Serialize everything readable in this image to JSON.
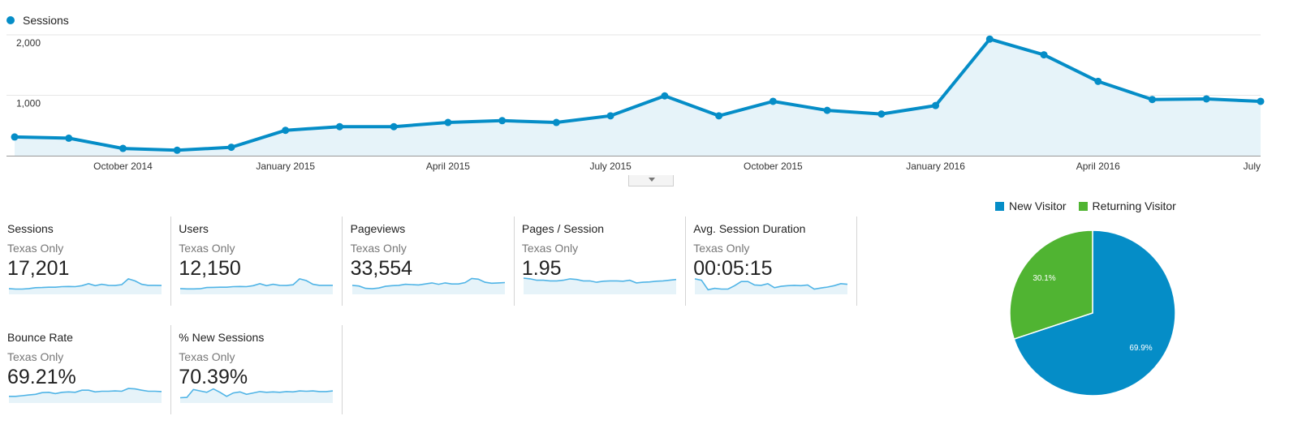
{
  "colors": {
    "sessions_line": "#058dc7",
    "sessions_fill": "#e6f3f9",
    "sparkline": "#50b4e6",
    "sparkline_fill": "#e6f3f9",
    "new_visitor": "#058dc7",
    "returning_visitor": "#50b432",
    "gridline": "#e6e6e6",
    "axis": "#999999"
  },
  "chart_data": [
    {
      "type": "area",
      "series": [
        {
          "name": "Sessions",
          "values": [
            310,
            290,
            120,
            90,
            140,
            420,
            480,
            480,
            550,
            580,
            550,
            660,
            990,
            660,
            900,
            750,
            690,
            830,
            1930,
            1670,
            1230,
            930,
            940,
            900
          ]
        }
      ],
      "yticks": [
        "2,000",
        "1,000"
      ],
      "ylim": [
        0,
        2000
      ],
      "xticks": [
        "October 2014",
        "January 2015",
        "April 2015",
        "July 2015",
        "October 2015",
        "January 2016",
        "April 2016",
        "July"
      ],
      "grid": true,
      "legend": "top-left"
    },
    {
      "type": "pie",
      "labels": [
        "New Visitor",
        "Returning Visitor"
      ],
      "values": [
        69.9,
        30.1
      ],
      "value_labels": [
        "69.9%",
        "30.1%"
      ],
      "legend": "top"
    }
  ],
  "scorecards": [
    {
      "label": "Sessions",
      "segment": "Texas Only",
      "value": "17,201",
      "spark": [
        0.75,
        0.6,
        0.6,
        0.75,
        1.0,
        1.05,
        1.15,
        1.15,
        1.3,
        1.35,
        1.3,
        1.6,
        2.2,
        1.6,
        2.0,
        1.7,
        1.65,
        1.9,
        3.6,
        3.0,
        2.0,
        1.7,
        1.7,
        1.65
      ]
    },
    {
      "label": "Users",
      "segment": "Texas Only",
      "value": "12,150",
      "spark": [
        0.75,
        0.65,
        0.65,
        0.7,
        1.05,
        1.1,
        1.15,
        1.15,
        1.3,
        1.35,
        1.3,
        1.6,
        2.2,
        1.6,
        2.0,
        1.7,
        1.65,
        1.85,
        3.6,
        3.1,
        2.0,
        1.7,
        1.7,
        1.7
      ]
    },
    {
      "label": "Pageviews",
      "segment": "Texas Only",
      "value": "33,554",
      "spark": [
        1.7,
        1.5,
        0.8,
        0.7,
        0.9,
        1.4,
        1.6,
        1.7,
        2.0,
        1.9,
        1.8,
        2.1,
        2.4,
        2.0,
        2.4,
        2.1,
        2.1,
        2.5,
        3.7,
        3.5,
        2.6,
        2.3,
        2.4,
        2.5
      ]
    },
    {
      "label": "Pages / Session",
      "segment": "Texas Only",
      "value": "1.95",
      "spark": [
        3.8,
        3.6,
        3.2,
        3.2,
        3.0,
        3.0,
        3.2,
        3.6,
        3.4,
        3.0,
        3.0,
        2.6,
        2.9,
        3.0,
        3.0,
        2.9,
        3.2,
        2.4,
        2.6,
        2.7,
        2.9,
        3.0,
        3.2,
        3.4
      ]
    },
    {
      "label": "Avg. Session Duration",
      "segment": "Texas Only",
      "value": "00:05:15",
      "spark": [
        3.6,
        3.2,
        0.4,
        0.8,
        0.6,
        0.6,
        1.6,
        2.8,
        2.8,
        1.8,
        1.7,
        2.2,
        1.0,
        1.4,
        1.6,
        1.7,
        1.6,
        1.8,
        0.6,
        0.9,
        1.2,
        1.6,
        2.2,
        2.0
      ]
    },
    {
      "label": "Bounce Rate",
      "segment": "Texas Only",
      "value": "69.21%",
      "spark": [
        1.0,
        1.0,
        1.2,
        1.4,
        1.6,
        2.1,
        2.2,
        1.8,
        2.2,
        2.3,
        2.2,
        2.8,
        2.8,
        2.3,
        2.5,
        2.5,
        2.6,
        2.5,
        3.3,
        3.2,
        2.8,
        2.5,
        2.5,
        2.4
      ]
    },
    {
      "label": "% New Sessions",
      "segment": "Texas Only",
      "value": "70.39%",
      "spark": [
        0.6,
        0.7,
        3.0,
        2.6,
        2.2,
        3.2,
        2.2,
        1.0,
        2.0,
        2.3,
        1.6,
        2.0,
        2.4,
        2.2,
        2.3,
        2.2,
        2.4,
        2.3,
        2.6,
        2.5,
        2.6,
        2.4,
        2.4,
        2.6
      ]
    }
  ],
  "pie_legend": [
    {
      "label": "New Visitor",
      "color": "#058dc7"
    },
    {
      "label": "Returning Visitor",
      "color": "#50b432"
    }
  ]
}
